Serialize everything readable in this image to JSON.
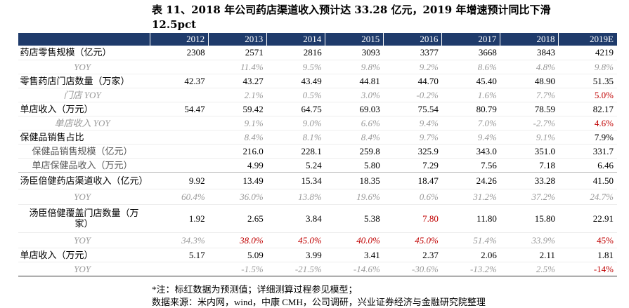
{
  "header": {
    "title": "表 11、2018 年公司药店渠道收入预计达 33.28 亿元，2019 年增速预计同比下滑 12.5pct"
  },
  "table": {
    "columns": [
      null,
      "2012",
      "2013",
      "2014",
      "2015",
      "2016",
      "2017",
      "2018",
      "2019E"
    ],
    "rows": [
      [
        "药店零售规模（亿元）",
        "2308",
        "2571",
        "2816",
        "3093",
        "3377",
        "3668",
        "3843",
        "4219"
      ],
      [
        "YOY",
        null,
        "11.4%",
        "9.5%",
        "9.8%",
        "9.2%",
        "8.6%",
        "4.8%",
        "9.8%"
      ],
      [
        "零售药店门店数量（万家）",
        "42.37",
        "43.27",
        "43.49",
        "44.81",
        "44.70",
        "45.40",
        "48.90",
        "51.35"
      ],
      [
        "门店 YOY",
        null,
        "2.1%",
        "0.5%",
        "3.0%",
        "-0.2%",
        "1.6%",
        "7.7%",
        "5.0%"
      ],
      [
        "单店收入（万元）",
        "54.47",
        "59.42",
        "64.75",
        "69.03",
        "75.54",
        "80.79",
        "78.59",
        "82.17"
      ],
      [
        "单店收入 YOY",
        null,
        "9.1%",
        "9.0%",
        "6.6%",
        "9.4%",
        "7.0%",
        "-2.7%",
        "4.6%"
      ],
      [
        "保健品销售占比",
        null,
        "8.4%",
        "8.1%",
        "8.4%",
        "9.7%",
        "9.4%",
        "9.1%",
        "7.9%"
      ],
      [
        "保健品销售规模（亿元）",
        null,
        "216.0",
        "228.1",
        "259.8",
        "325.9",
        "343.0",
        "351.0",
        "331.7"
      ],
      [
        "单店保健品收入（万元）",
        null,
        "4.99",
        "5.24",
        "5.80",
        "7.29",
        "7.56",
        "7.18",
        "6.46"
      ],
      [
        "汤臣倍健药店渠道收入（亿元）",
        "9.92",
        "13.49",
        "15.34",
        "18.35",
        "18.47",
        "24.26",
        "33.28",
        "41.50"
      ],
      [
        "YOY",
        "60.4%",
        "36.0%",
        "13.8%",
        "19.6%",
        "0.6%",
        "31.2%",
        "37.2%",
        "24.7%"
      ],
      [
        "汤臣倍健覆盖门店数量（万家）",
        "1.92",
        "2.65",
        "3.84",
        "5.38",
        "7.80",
        "11.80",
        "15.80",
        "22.91"
      ],
      [
        "YOY",
        "34.3%",
        "38.0%",
        "45.0%",
        "40.0%",
        "45.0%",
        "51.4%",
        "33.9%",
        "45%"
      ],
      [
        "单店收入（万元）",
        "5.17",
        "5.09",
        "3.99",
        "3.41",
        "2.37",
        "2.06",
        "2.11",
        "1.81"
      ],
      [
        "YOY",
        null,
        "-1.5%",
        "-21.5%",
        "-14.6%",
        "-30.6%",
        "-13.2%",
        "2.5%",
        "-14%"
      ]
    ]
  },
  "notes": [
    "*注：标红数据为预测值；详细测算过程参见模型；",
    "数据来源：米内网，wind，中康 CMH，公司调研，兴业证券经济与金融研究院整理"
  ]
}
